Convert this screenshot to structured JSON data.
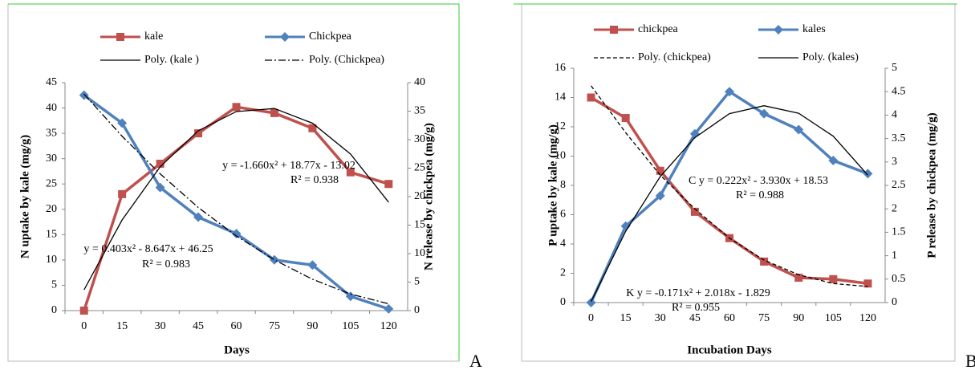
{
  "chart_data": [
    {
      "type": "line",
      "panel_label": "A",
      "xlabel": "Days",
      "ylabel": "N uptake by kale (mg/g)",
      "y2label": "N release by chickpea (mg/g)",
      "categories": [
        0,
        15,
        30,
        45,
        60,
        75,
        90,
        105,
        120
      ],
      "ylim": [
        0,
        45
      ],
      "yticks": [
        0,
        5,
        10,
        15,
        20,
        25,
        30,
        35,
        40,
        45
      ],
      "y2lim": [
        0,
        40
      ],
      "y2ticks": [
        0,
        5,
        10,
        15,
        20,
        25,
        30,
        35,
        40
      ],
      "grid": false,
      "series": [
        {
          "name": "kale",
          "color": "#c0504d",
          "style": "solid",
          "marker": "square",
          "axis": "y",
          "values": [
            0,
            23,
            29,
            35,
            40.2,
            39,
            36,
            27.3,
            25
          ]
        },
        {
          "name": "Chickpea",
          "color": "#4f81bd",
          "style": "solid",
          "marker": "diamond",
          "axis": "y2",
          "values": [
            37.8,
            32.9,
            21.6,
            16.4,
            13.5,
            8.9,
            8.0,
            2.5,
            0.3
          ]
        },
        {
          "name": "Poly. (kale )",
          "color": "#000000",
          "style": "solid",
          "marker": "none",
          "axis": "y",
          "values": [
            4.1,
            17.9,
            28.4,
            35.5,
            39.3,
            39.9,
            37.0,
            30.9,
            21.4
          ]
        },
        {
          "name": "Poly. (Chickpea)",
          "color": "#000000",
          "style": "dashdot",
          "marker": "none",
          "axis": "y2",
          "values": [
            38.0,
            30.6,
            24.0,
            18.1,
            13.1,
            8.9,
            5.5,
            2.9,
            1.2
          ]
        }
      ],
      "annotations": [
        "y = -1.660x² + 18.77x - 13.02",
        "R² = 0.938",
        "y = 0.403x² - 8.647x + 46.25",
        "R² = 0.983"
      ]
    },
    {
      "type": "line",
      "panel_label": "B",
      "xlabel": "Incubation Days",
      "ylabel": "P uptake by kale (mg/g)",
      "y2label": "P release by chickpea (mg/g)",
      "categories": [
        0,
        15,
        30,
        45,
        60,
        75,
        90,
        105,
        120
      ],
      "ylim": [
        0,
        16
      ],
      "yticks": [
        0,
        2,
        4,
        6,
        8,
        10,
        12,
        14,
        16
      ],
      "y2lim": [
        0,
        5
      ],
      "y2ticks": [
        0,
        0.5,
        1,
        1.5,
        2,
        2.5,
        3,
        3.5,
        4,
        4.5,
        5
      ],
      "grid": false,
      "series": [
        {
          "name": "chickpea",
          "color": "#c0504d",
          "style": "solid",
          "marker": "square",
          "axis": "y",
          "values": [
            14,
            12.6,
            9,
            6.2,
            4.4,
            2.8,
            1.7,
            1.6,
            1.3
          ]
        },
        {
          "name": "kales",
          "color": "#4f81bd",
          "style": "solid",
          "marker": "diamond",
          "axis": "y2",
          "values": [
            0,
            1.63,
            2.28,
            3.6,
            4.5,
            4.03,
            3.69,
            3.03,
            2.75
          ]
        },
        {
          "name": "Poly. (chickpea)",
          "color": "#000000",
          "style": "dashed",
          "marker": "none",
          "axis": "y",
          "values": [
            14.8,
            11.6,
            8.7,
            6.4,
            4.4,
            2.9,
            1.9,
            1.3,
            1.1
          ]
        },
        {
          "name": "Poly. (kales)",
          "color": "#000000",
          "style": "solid",
          "marker": "none",
          "axis": "y2",
          "values": [
            0.02,
            1.52,
            2.69,
            3.52,
            4.03,
            4.2,
            4.04,
            3.55,
            2.72
          ]
        }
      ],
      "annotations": [
        "C y = 0.222x² - 3.930x + 18.53",
        "R² = 0.988",
        "K y = -0.171x² + 2.018x - 1.829",
        "R² = 0.955"
      ]
    }
  ]
}
